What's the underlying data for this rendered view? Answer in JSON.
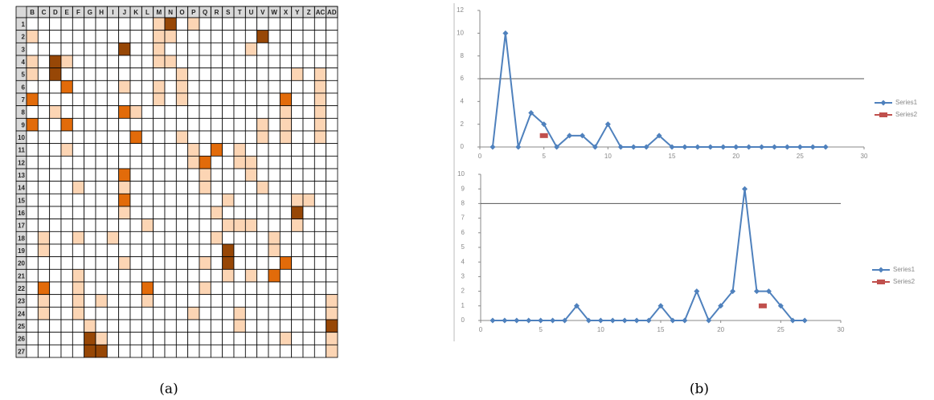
{
  "heatmap": {
    "columns": [
      "B",
      "C",
      "D",
      "E",
      "F",
      "G",
      "H",
      "I",
      "J",
      "K",
      "L",
      "M",
      "N",
      "O",
      "P",
      "Q",
      "R",
      "S",
      "T",
      "U",
      "V",
      "W",
      "X",
      "Y",
      "Z",
      "AC",
      "AD"
    ],
    "colors": [
      "#ffffff",
      "#fcd5b4",
      "#e26b0a",
      "#974706"
    ],
    "rows": [
      {
        "label": "1",
        "values": [
          0,
          0,
          0,
          0,
          0,
          0,
          0,
          0,
          0,
          0,
          0,
          1,
          3,
          0,
          1,
          0,
          0,
          0,
          0,
          0,
          0,
          0,
          0,
          0,
          0,
          0,
          0
        ]
      },
      {
        "label": "2",
        "values": [
          1,
          0,
          0,
          0,
          0,
          0,
          0,
          0,
          0,
          0,
          0,
          1,
          1,
          0,
          0,
          0,
          0,
          0,
          0,
          0,
          3,
          0,
          0,
          0,
          0,
          0,
          0
        ]
      },
      {
        "label": "3",
        "values": [
          0,
          0,
          0,
          0,
          0,
          0,
          0,
          0,
          3,
          0,
          0,
          1,
          0,
          0,
          0,
          0,
          0,
          0,
          0,
          1,
          0,
          0,
          0,
          0,
          0,
          0,
          0
        ]
      },
      {
        "label": "4",
        "values": [
          1,
          0,
          3,
          1,
          0,
          0,
          0,
          0,
          0,
          0,
          0,
          1,
          1,
          0,
          0,
          0,
          0,
          0,
          0,
          0,
          0,
          0,
          0,
          0,
          0,
          0,
          0
        ]
      },
      {
        "label": "5",
        "values": [
          1,
          0,
          3,
          0,
          0,
          0,
          0,
          0,
          0,
          0,
          0,
          0,
          0,
          1,
          0,
          0,
          0,
          0,
          0,
          0,
          0,
          0,
          0,
          1,
          0,
          1,
          0
        ]
      },
      {
        "label": "6",
        "values": [
          0,
          0,
          0,
          2,
          0,
          0,
          0,
          0,
          1,
          0,
          0,
          1,
          0,
          1,
          0,
          0,
          0,
          0,
          0,
          0,
          0,
          0,
          0,
          0,
          0,
          1,
          0
        ]
      },
      {
        "label": "7",
        "values": [
          2,
          0,
          0,
          0,
          0,
          0,
          0,
          0,
          0,
          0,
          0,
          1,
          0,
          1,
          0,
          0,
          0,
          0,
          0,
          0,
          0,
          0,
          2,
          0,
          0,
          1,
          0
        ]
      },
      {
        "label": "8",
        "values": [
          0,
          0,
          1,
          0,
          0,
          0,
          0,
          0,
          2,
          1,
          0,
          0,
          0,
          0,
          0,
          0,
          0,
          0,
          0,
          0,
          0,
          0,
          1,
          0,
          0,
          1,
          0
        ]
      },
      {
        "label": "9",
        "values": [
          2,
          0,
          0,
          2,
          0,
          0,
          0,
          0,
          0,
          0,
          0,
          0,
          0,
          0,
          0,
          0,
          0,
          0,
          0,
          0,
          1,
          0,
          1,
          0,
          0,
          1,
          0
        ]
      },
      {
        "label": "10",
        "values": [
          0,
          0,
          0,
          0,
          0,
          0,
          0,
          0,
          0,
          2,
          0,
          0,
          0,
          1,
          0,
          0,
          0,
          0,
          0,
          0,
          1,
          0,
          1,
          0,
          0,
          1,
          0
        ]
      },
      {
        "label": "11",
        "values": [
          0,
          0,
          0,
          1,
          0,
          0,
          0,
          0,
          0,
          0,
          0,
          0,
          0,
          0,
          1,
          0,
          2,
          0,
          1,
          0,
          0,
          0,
          0,
          0,
          0,
          0,
          0
        ]
      },
      {
        "label": "12",
        "values": [
          0,
          0,
          0,
          0,
          0,
          0,
          0,
          0,
          0,
          0,
          0,
          0,
          0,
          0,
          1,
          2,
          0,
          0,
          1,
          1,
          0,
          0,
          0,
          0,
          0,
          0,
          0
        ]
      },
      {
        "label": "13",
        "values": [
          0,
          0,
          0,
          0,
          0,
          0,
          0,
          0,
          2,
          0,
          0,
          0,
          0,
          0,
          0,
          1,
          0,
          0,
          0,
          1,
          0,
          0,
          0,
          0,
          0,
          0,
          0
        ]
      },
      {
        "label": "14",
        "values": [
          0,
          0,
          0,
          0,
          1,
          0,
          0,
          0,
          1,
          0,
          0,
          0,
          0,
          0,
          0,
          1,
          0,
          0,
          0,
          0,
          1,
          0,
          0,
          0,
          0,
          0,
          0
        ]
      },
      {
        "label": "15",
        "values": [
          0,
          0,
          0,
          0,
          0,
          0,
          0,
          0,
          2,
          0,
          0,
          0,
          0,
          0,
          0,
          0,
          0,
          1,
          0,
          0,
          0,
          0,
          0,
          1,
          1,
          0,
          0
        ]
      },
      {
        "label": "16",
        "values": [
          0,
          0,
          0,
          0,
          0,
          0,
          0,
          0,
          1,
          0,
          0,
          0,
          0,
          0,
          0,
          0,
          1,
          0,
          0,
          0,
          0,
          0,
          0,
          3,
          0,
          0,
          0
        ]
      },
      {
        "label": "17",
        "values": [
          0,
          0,
          0,
          0,
          0,
          0,
          0,
          0,
          0,
          0,
          1,
          0,
          0,
          0,
          0,
          0,
          0,
          1,
          1,
          1,
          0,
          0,
          0,
          1,
          0,
          0,
          0
        ]
      },
      {
        "label": "18",
        "values": [
          0,
          1,
          0,
          0,
          1,
          0,
          0,
          1,
          0,
          0,
          0,
          0,
          0,
          0,
          0,
          0,
          1,
          0,
          0,
          0,
          0,
          1,
          0,
          0,
          0,
          0,
          0
        ]
      },
      {
        "label": "19",
        "values": [
          0,
          1,
          0,
          0,
          0,
          0,
          0,
          0,
          0,
          0,
          0,
          0,
          0,
          0,
          0,
          0,
          0,
          3,
          0,
          0,
          0,
          1,
          0,
          0,
          0,
          0,
          0
        ]
      },
      {
        "label": "20",
        "values": [
          0,
          0,
          0,
          0,
          0,
          0,
          0,
          0,
          1,
          0,
          0,
          0,
          0,
          0,
          0,
          1,
          0,
          3,
          0,
          0,
          0,
          0,
          2,
          0,
          0,
          0,
          0
        ]
      },
      {
        "label": "21",
        "values": [
          0,
          0,
          0,
          0,
          1,
          0,
          0,
          0,
          0,
          0,
          0,
          0,
          0,
          0,
          0,
          0,
          0,
          1,
          0,
          1,
          0,
          2,
          0,
          0,
          0,
          0,
          0
        ]
      },
      {
        "label": "22",
        "values": [
          0,
          2,
          0,
          0,
          1,
          0,
          0,
          0,
          0,
          0,
          2,
          0,
          0,
          0,
          0,
          1,
          0,
          0,
          0,
          0,
          0,
          0,
          0,
          0,
          0,
          0,
          0
        ]
      },
      {
        "label": "23",
        "values": [
          0,
          1,
          0,
          0,
          1,
          0,
          1,
          0,
          0,
          0,
          1,
          0,
          0,
          0,
          0,
          0,
          0,
          0,
          0,
          0,
          0,
          0,
          0,
          0,
          0,
          0,
          1
        ]
      },
      {
        "label": "24",
        "values": [
          0,
          1,
          0,
          0,
          1,
          0,
          0,
          0,
          0,
          0,
          0,
          0,
          0,
          0,
          1,
          0,
          0,
          0,
          1,
          0,
          0,
          0,
          0,
          0,
          0,
          0,
          1
        ]
      },
      {
        "label": "25",
        "values": [
          0,
          0,
          0,
          0,
          0,
          1,
          0,
          0,
          0,
          0,
          0,
          0,
          0,
          0,
          0,
          0,
          0,
          0,
          1,
          0,
          0,
          0,
          0,
          0,
          0,
          0,
          3
        ]
      },
      {
        "label": "26",
        "values": [
          0,
          0,
          0,
          0,
          0,
          3,
          1,
          0,
          0,
          0,
          0,
          0,
          0,
          0,
          0,
          0,
          0,
          0,
          0,
          0,
          0,
          0,
          1,
          0,
          0,
          0,
          1
        ]
      },
      {
        "label": "27",
        "values": [
          0,
          0,
          0,
          0,
          0,
          3,
          3,
          0,
          0,
          0,
          0,
          0,
          0,
          0,
          0,
          0,
          0,
          0,
          0,
          0,
          0,
          0,
          0,
          0,
          0,
          0,
          1
        ]
      }
    ]
  },
  "chart_data": [
    {
      "type": "line",
      "xlim": [
        0,
        30
      ],
      "xticks": [
        0,
        5,
        10,
        15,
        20,
        25,
        30
      ],
      "ylim": [
        0,
        12
      ],
      "yticks": [
        0,
        2,
        4,
        6,
        8,
        10,
        12
      ],
      "threshold": 6,
      "series": [
        {
          "name": "Series1",
          "color": "#4f81bd",
          "marker": "diamond",
          "x": [
            1,
            2,
            3,
            4,
            5,
            6,
            7,
            8,
            9,
            10,
            11,
            12,
            13,
            14,
            15,
            16,
            17,
            18,
            19,
            20,
            21,
            22,
            23,
            24,
            25,
            26,
            27
          ],
          "values": [
            0,
            10,
            0,
            3,
            2,
            0,
            1,
            1,
            0,
            2,
            0,
            0,
            0,
            1,
            0,
            0,
            0,
            0,
            0,
            0,
            0,
            0,
            0,
            0,
            0,
            0,
            0
          ]
        },
        {
          "name": "Series2",
          "color": "#c0504d",
          "marker": "square",
          "x": [
            5
          ],
          "values": [
            1
          ]
        }
      ]
    },
    {
      "type": "line",
      "xlim": [
        0,
        30
      ],
      "xticks": [
        0,
        5,
        10,
        15,
        20,
        25,
        30
      ],
      "ylim": [
        0,
        10
      ],
      "yticks": [
        0,
        1,
        2,
        3,
        4,
        5,
        6,
        7,
        8,
        9,
        10
      ],
      "threshold": 8,
      "series": [
        {
          "name": "Series1",
          "color": "#4f81bd",
          "marker": "diamond",
          "x": [
            1,
            2,
            3,
            4,
            5,
            6,
            7,
            8,
            9,
            10,
            11,
            12,
            13,
            14,
            15,
            16,
            17,
            18,
            19,
            20,
            21,
            22,
            23,
            24,
            25,
            26,
            27
          ],
          "values": [
            0,
            0,
            0,
            0,
            0,
            0,
            0,
            1,
            0,
            0,
            0,
            0,
            0,
            0,
            1,
            0,
            0,
            2,
            0,
            1,
            2,
            9,
            2,
            2,
            1,
            0,
            0
          ]
        },
        {
          "name": "Series2",
          "color": "#c0504d",
          "marker": "square",
          "x": [
            23.5
          ],
          "values": [
            1
          ]
        }
      ]
    }
  ],
  "captions": [
    "(a)",
    "(b)"
  ]
}
